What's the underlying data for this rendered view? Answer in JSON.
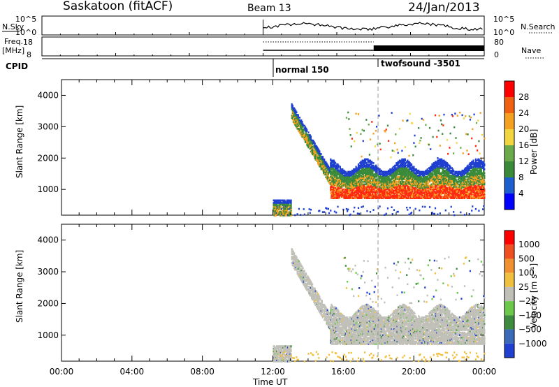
{
  "header": {
    "station": "Saskatoon (fitACF)",
    "beam": "Beam 13",
    "date": "24/Jan/2013"
  },
  "strip": {
    "nsky_label": "N.Sky",
    "nsky_ticks": [
      "10^5",
      "10^0"
    ],
    "nsearch_label": "N.Search",
    "nsearch_ticks": [
      "10^5",
      "10^0"
    ],
    "freq_label": "Freq.",
    "freq_unit": "[MHz]",
    "freq_ticks": [
      "18",
      "8"
    ],
    "nave_label": "Nave",
    "nave_ticks": [
      "80",
      "0"
    ],
    "cpid_label": "CPID",
    "cpid_segments": [
      {
        "name": "normal 150",
        "start": "12:00"
      },
      {
        "name": "twofsound -3501",
        "start": "18:00"
      }
    ]
  },
  "chart_data": [
    {
      "type": "heatmap",
      "panel": "power",
      "ylabel": "Slant Range [km]",
      "xlabel": "",
      "ylim": [
        180,
        4500
      ],
      "yticks": [
        1000,
        2000,
        3000,
        4000
      ],
      "colorbar": {
        "label": "Power [dB]",
        "ticks": [
          "4",
          "8",
          "12",
          "16",
          "20",
          "24",
          "28"
        ],
        "colors": [
          "#0000ff",
          "#1e5fd0",
          "#3a8a3a",
          "#6aaa4a",
          "#f2d640",
          "#f5a020",
          "#f06010",
          "#ff0000"
        ]
      },
      "features": [
        {
          "time_start": "12:00",
          "time_end": "24:00",
          "range_km": [
            200,
            800
          ],
          "note": "sparse scatter"
        },
        {
          "time_start": "13:00",
          "time_end": "15:00",
          "range_km": [
            3200,
            1200
          ],
          "note": "descending band"
        },
        {
          "time_start": "15:00",
          "time_end": "24:00",
          "range_km": [
            800,
            1800
          ],
          "note": "strong scatter"
        }
      ]
    },
    {
      "type": "heatmap",
      "panel": "velocity",
      "ylabel": "Slant Range [km]",
      "xlabel": "Time UT",
      "ylim": [
        180,
        4500
      ],
      "yticks": [
        1000,
        2000,
        3000,
        4000
      ],
      "colorbar": {
        "label": "Velocity [m s⁻¹]",
        "ticks": [
          "1000",
          "500",
          "100",
          "25",
          "−25",
          "−100",
          "−500",
          "−1000"
        ],
        "colors": [
          "#2040d0",
          "#3a6ab8",
          "#3e8a3e",
          "#6cc84a",
          "#c0c0b8",
          "#f0c040",
          "#f09030",
          "#f05020",
          "#ff0000"
        ]
      },
      "xticks": [
        "00:00",
        "04:00",
        "08:00",
        "12:00",
        "16:00",
        "20:00",
        "00:00"
      ]
    }
  ],
  "colors": {
    "power_strong": "#ff2a10",
    "power_mid": "#f5a020",
    "power_low": "#3a8a3a",
    "power_weak": "#1e3fd0",
    "velocity_ground": "#c0c0b8"
  }
}
